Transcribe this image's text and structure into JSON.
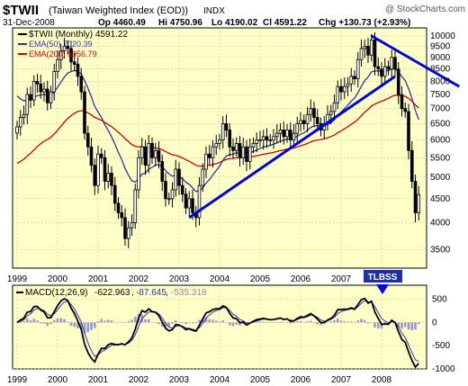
{
  "header": {
    "symbol": "$TWII",
    "name": "(Taiwan Weighted Index (EOD))",
    "exchange": "INDX",
    "watermark": "@ StockCharts.com",
    "date": "31-Dec-2008",
    "quote_open": "Op 4460.49",
    "quote_high": "Hi 4750.96",
    "quote_low": "Lo 4190.02",
    "quote_close": "Cl 4591.22",
    "quote_change": "Chg +130.73 (+2.93%)"
  },
  "legend": {
    "price": "$TWII (Monthly) 4591.22",
    "ema50": "EMA(50) 7020.39",
    "ema200": "EMA(200) 5956.79"
  },
  "annotation": {
    "signal_label": "TLBSS"
  },
  "colors": {
    "panel_bg": "#ffffc8",
    "grid": "#c8c8a0",
    "price": "#000000",
    "ema50": "#3030a0",
    "ema200": "#cc0000",
    "trendline": "#0000dd",
    "histogram": "#9999cc",
    "macd": "#000000",
    "signal": "#3030c0"
  },
  "chart_data": [
    {
      "type": "candlestick",
      "title": "",
      "scale": "log",
      "x_ticks": [
        "1999",
        "2000",
        "2001",
        "2002",
        "2003",
        "2004",
        "2005",
        "2006",
        "2007",
        "2008"
      ],
      "y_ticks": [
        3500,
        4000,
        4500,
        5000,
        5500,
        6000,
        6500,
        7000,
        7500,
        8000,
        8500,
        9000,
        9500,
        10000
      ],
      "ylim": [
        3200,
        10400
      ],
      "grid": true,
      "legend_position": "top-left",
      "monthly_close": [
        6400,
        6700,
        6800,
        7500,
        7300,
        8000,
        7900,
        7600,
        7700,
        7200,
        7600,
        8400,
        8900,
        9300,
        9500,
        9400,
        8800,
        8700,
        8200,
        7600,
        6200,
        5800,
        5300,
        4800,
        5600,
        5500,
        4900,
        5100,
        4800,
        4400,
        4200,
        4100,
        3700,
        3900,
        4000,
        4700,
        5500,
        5800,
        5300,
        5900,
        5500,
        5700,
        5400,
        4900,
        4500,
        4500,
        4700,
        5200,
        4800,
        4600,
        4300,
        4500,
        4200,
        4100,
        4800,
        5200,
        5600,
        5500,
        5800,
        5900,
        6000,
        6500,
        6300,
        5800,
        5700,
        5900,
        5500,
        5800,
        5400,
        5800,
        5900,
        6000,
        6000,
        6100,
        6000,
        6000,
        6100,
        6200,
        6300,
        6100,
        6300,
        6000,
        6200,
        6500,
        6600,
        6500,
        6800,
        7000,
        6700,
        6500,
        6300,
        6500,
        6800,
        6900,
        7200,
        7800,
        7600,
        7800,
        7900,
        8200,
        8100,
        8900,
        9400,
        9500,
        9100,
        9800,
        8600,
        8500,
        8200,
        8600,
        8500,
        9000,
        8500,
        7500,
        7000,
        6900,
        5700,
        4900,
        4200,
        4591.22
      ],
      "ema50_last": 7020.39,
      "ema200_last": 5956.79,
      "trendlines": [
        {
          "from": {
            "date": "2003-04",
            "value": 4100
          },
          "to": {
            "date": "2008-05",
            "value": 8200
          }
        },
        {
          "from": {
            "date": "2007-10",
            "value": 10000
          },
          "to": {
            "date": "2009-12",
            "value": 7800
          }
        }
      ]
    },
    {
      "type": "macd",
      "title": "MACD(12,26,9)",
      "macd_label": "-622.963",
      "signal_label": "-87.645",
      "histogram_label": "-535.318",
      "y_ticks": [
        500,
        0,
        -500,
        -1000
      ],
      "ylim": [
        -1000,
        800
      ],
      "x_ticks": [
        "1999",
        "2000",
        "2001",
        "2002",
        "2003",
        "2004",
        "2005",
        "2006",
        "2007",
        "2008"
      ],
      "grid": true
    }
  ]
}
